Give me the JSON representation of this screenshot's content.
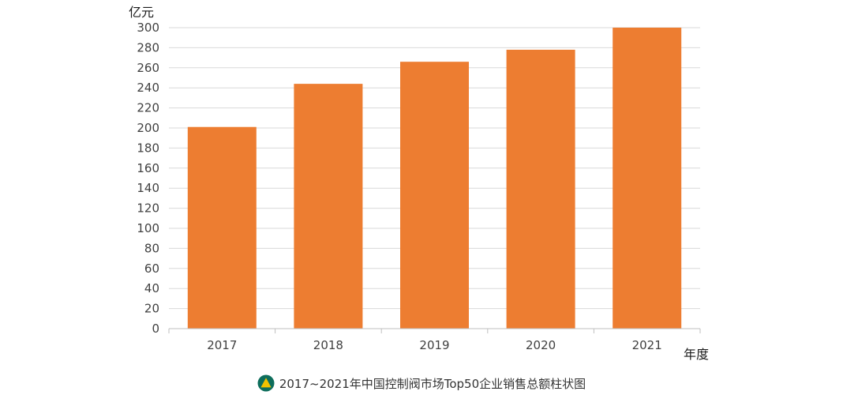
{
  "chart_data": {
    "type": "bar",
    "categories": [
      "2017",
      "2018",
      "2019",
      "2020",
      "2021"
    ],
    "values": [
      201,
      244,
      266,
      278,
      300
    ],
    "ylabel": "亿元",
    "xlabel": "年度",
    "ylim": [
      0,
      300
    ],
    "yticks": [
      0,
      20,
      40,
      60,
      80,
      100,
      120,
      140,
      160,
      180,
      200,
      220,
      240,
      260,
      280,
      300
    ],
    "grid": true,
    "bar_color": "#ED7D31",
    "grid_color": "#D9D9D9",
    "axis_color": "#BFBFBF"
  },
  "caption": {
    "title": "2017~2021年中国控制阀市场Top50企业销售总额柱状图",
    "logo_icon": "logo-icon",
    "logo_colors": {
      "outer": "#0E6E5C",
      "inner": "#F2C200"
    }
  }
}
